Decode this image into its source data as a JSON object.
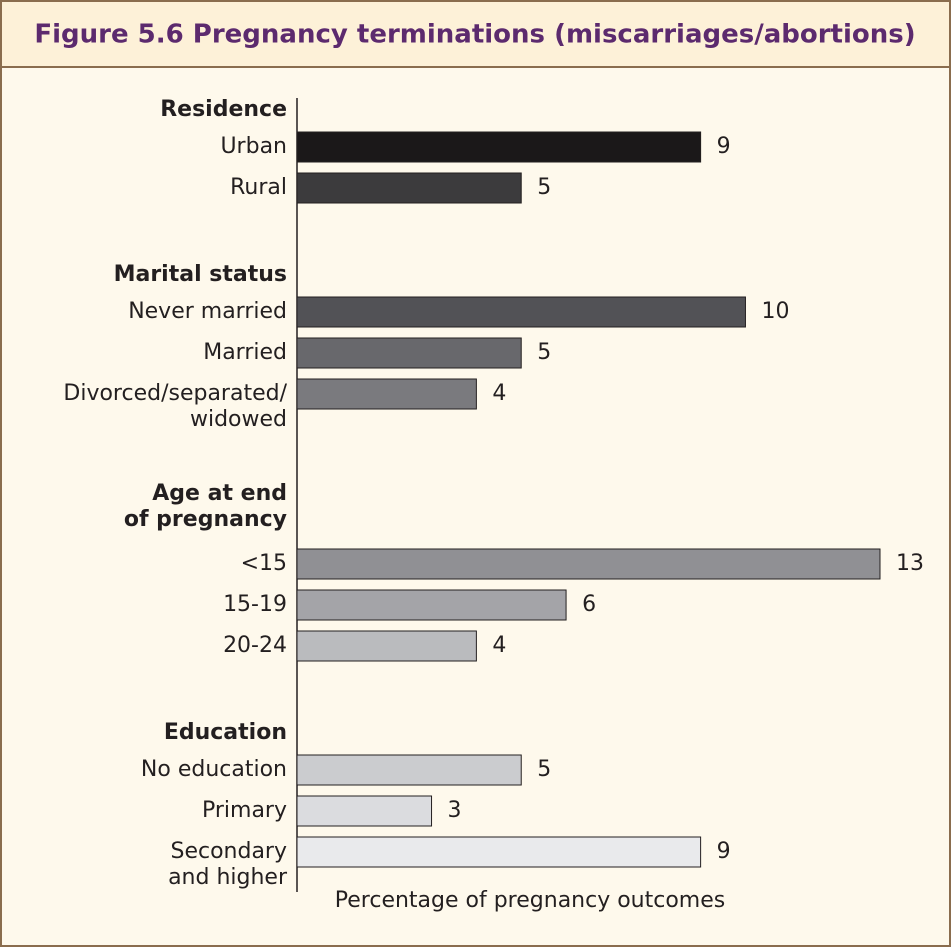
{
  "chart_data": {
    "type": "bar",
    "orientation": "horizontal",
    "title": "Figure 5.6  Pregnancy terminations (miscarriages/abortions)",
    "xlabel": "Percentage of pregnancy outcomes",
    "groups": [
      {
        "name": "Residence",
        "categories": [
          "Urban",
          "Rural"
        ],
        "values": [
          9,
          5
        ],
        "colors": [
          "#1b1819",
          "#3c3b3d"
        ]
      },
      {
        "name": "Marital status",
        "categories": [
          "Never married",
          "Married",
          "Divorced/separated/\nwidowed"
        ],
        "values": [
          10,
          5,
          4
        ],
        "colors": [
          "#525256",
          "#68686c",
          "#7a7a7e"
        ]
      },
      {
        "name": "Age at end\nof pregnancy",
        "categories": [
          "<15",
          "15-19",
          "20-24"
        ],
        "values": [
          13,
          6,
          4
        ],
        "colors": [
          "#909094",
          "#a4a4a8",
          "#babbbe"
        ]
      },
      {
        "name": "Education",
        "categories": [
          "No education",
          "Primary",
          "Secondary\nand higher"
        ],
        "values": [
          5,
          3,
          9
        ],
        "colors": [
          "#cbcccf",
          "#dbdcdf",
          "#e9eaec"
        ]
      }
    ]
  }
}
